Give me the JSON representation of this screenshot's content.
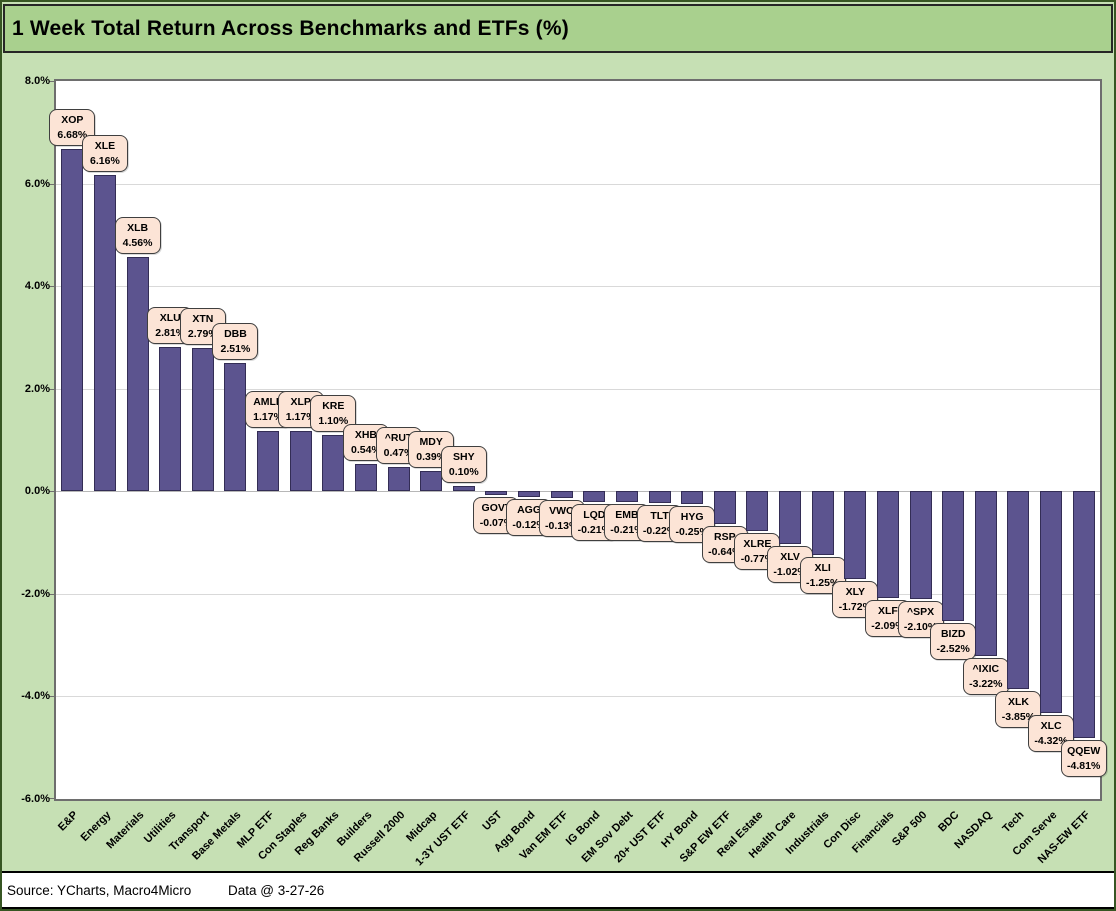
{
  "title": "1 Week Total Return Across Benchmarks and ETFs (%)",
  "footer": {
    "source": "Source: YCharts, Macro4Micro",
    "data_date": "Data @ 3-27-26"
  },
  "colors": {
    "title_band": "#a9d08e",
    "chart_background": "#c6e0b4",
    "bar_fill": "#5c548f",
    "bar_border": "#332d55",
    "data_label_background": "#fce4d6",
    "data_label_border": "#3f3f3f",
    "gridline": "#d9d9d9"
  },
  "chart_data": {
    "type": "bar",
    "title": "1 Week Total Return Across Benchmarks and ETFs (%)",
    "xlabel": "",
    "ylabel": "",
    "ylabel_format": "percent",
    "ylim": [
      -6.0,
      8.0
    ],
    "yticks": [
      8.0,
      6.0,
      4.0,
      2.0,
      0.0,
      -2.0,
      -4.0,
      -6.0
    ],
    "grid": true,
    "legend": false,
    "categories": [
      "E&P",
      "Energy",
      "Materials",
      "Utilities",
      "Transport",
      "Base Metals",
      "MLP ETF",
      "Con Staples",
      "Reg Banks",
      "Builders",
      "Russell 2000",
      "Midcap",
      "1-3Y UST ETF",
      "UST",
      "Agg Bond",
      "Van EM ETF",
      "IG Bond",
      "EM Sov Debt",
      "20+ UST ETF",
      "HY Bond",
      "S&P EW ETF",
      "Real Estate",
      "Health Care",
      "Industrials",
      "Con Disc",
      "Financials",
      "S&P 500",
      "BDC",
      "NASDAQ",
      "Tech",
      "Com Serve",
      "NAS-EW ETF"
    ],
    "tickers": [
      "XOP",
      "XLE",
      "XLB",
      "XLU",
      "XTN",
      "DBB",
      "AMLP",
      "XLP",
      "KRE",
      "XHB",
      "^RUT",
      "MDY",
      "SHY",
      "GOVT",
      "AGG",
      "VWO",
      "LQD",
      "EMB",
      "TLT",
      "HYG",
      "RSP",
      "XLRE",
      "XLV",
      "XLI",
      "XLY",
      "XLF",
      "^SPX",
      "BIZD",
      "^IXIC",
      "XLK",
      "XLC",
      "QQEW"
    ],
    "values": [
      6.68,
      6.16,
      4.56,
      2.81,
      2.79,
      2.51,
      1.17,
      1.17,
      1.1,
      0.54,
      0.47,
      0.39,
      0.1,
      -0.07,
      -0.12,
      -0.13,
      -0.21,
      -0.21,
      -0.22,
      -0.25,
      -0.64,
      -0.77,
      -1.02,
      -1.25,
      -1.72,
      -2.09,
      -2.1,
      -2.52,
      -3.22,
      -3.85,
      -4.32,
      -4.81
    ]
  }
}
